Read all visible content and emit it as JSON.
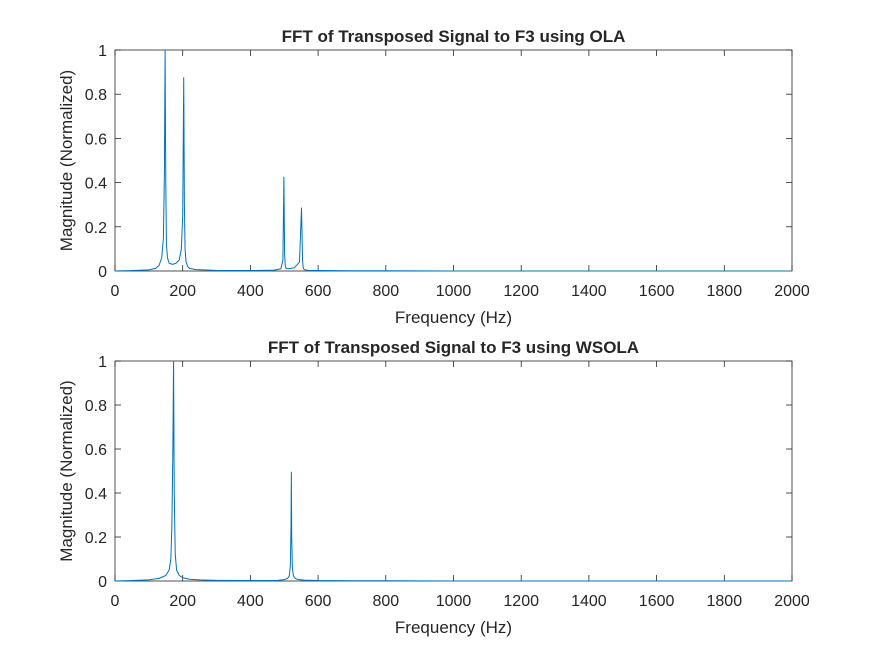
{
  "chart_data": [
    {
      "type": "line",
      "title": "FFT of Transposed Signal to F3 using OLA",
      "xlabel": "Frequency (Hz)",
      "ylabel": "Magnitude (Normalized)",
      "xlim": [
        0,
        2000
      ],
      "ylim": [
        0,
        1
      ],
      "x_ticks": [
        "0",
        "200",
        "400",
        "600",
        "800",
        "1000",
        "1200",
        "1400",
        "1600",
        "1800",
        "2000"
      ],
      "y_ticks": [
        "0",
        "0.2",
        "0.4",
        "0.6",
        "0.8",
        "1"
      ],
      "grid": false,
      "legend": "none",
      "color": "#0072BD",
      "series": [
        {
          "x": [
            0,
            50,
            100,
            120,
            130,
            138,
            143,
            146,
            148,
            150,
            152,
            155,
            160,
            170,
            180,
            190,
            196,
            200,
            203,
            205,
            207,
            210,
            215,
            220,
            240,
            300,
            400,
            470,
            490,
            496,
            499,
            501,
            503,
            506,
            510,
            520,
            530,
            545,
            551,
            554,
            556,
            558,
            562,
            570,
            600,
            700,
            800,
            1000,
            1200,
            1500,
            2000
          ],
          "y": [
            0.0,
            0.002,
            0.005,
            0.012,
            0.025,
            0.06,
            0.15,
            0.45,
            1.0,
            0.4,
            0.12,
            0.06,
            0.035,
            0.03,
            0.035,
            0.05,
            0.1,
            0.25,
            0.875,
            0.3,
            0.1,
            0.04,
            0.02,
            0.012,
            0.006,
            0.003,
            0.002,
            0.004,
            0.01,
            0.05,
            0.425,
            0.08,
            0.02,
            0.012,
            0.01,
            0.012,
            0.015,
            0.04,
            0.285,
            0.05,
            0.015,
            0.008,
            0.005,
            0.003,
            0.002,
            0.001,
            0.001,
            0.0,
            0.0,
            0.0,
            0.0
          ]
        }
      ]
    },
    {
      "type": "line",
      "title": "FFT of Transposed Signal to F3 using WSOLA",
      "xlabel": "Frequency (Hz)",
      "ylabel": "Magnitude (Normalized)",
      "xlim": [
        0,
        2000
      ],
      "ylim": [
        0,
        1
      ],
      "x_ticks": [
        "0",
        "200",
        "400",
        "600",
        "800",
        "1000",
        "1200",
        "1400",
        "1600",
        "1800",
        "2000"
      ],
      "y_ticks": [
        "0",
        "0.2",
        "0.4",
        "0.6",
        "0.8",
        "1"
      ],
      "grid": false,
      "legend": "none",
      "color": "#0072BD",
      "series": [
        {
          "x": [
            0,
            50,
            100,
            130,
            150,
            160,
            165,
            168,
            171,
            173,
            175,
            178,
            182,
            190,
            200,
            220,
            250,
            300,
            400,
            480,
            500,
            510,
            515,
            518,
            520,
            521,
            522,
            524,
            527,
            532,
            540,
            560,
            600,
            700,
            800,
            1000,
            1200,
            1500,
            2000
          ],
          "y": [
            0.0,
            0.002,
            0.005,
            0.012,
            0.025,
            0.05,
            0.1,
            0.25,
            0.6,
            1.0,
            0.4,
            0.12,
            0.05,
            0.025,
            0.015,
            0.008,
            0.005,
            0.003,
            0.002,
            0.003,
            0.006,
            0.012,
            0.025,
            0.07,
            0.25,
            0.495,
            0.2,
            0.06,
            0.025,
            0.012,
            0.007,
            0.004,
            0.002,
            0.001,
            0.001,
            0.0,
            0.0,
            0.0,
            0.0
          ]
        }
      ]
    }
  ]
}
